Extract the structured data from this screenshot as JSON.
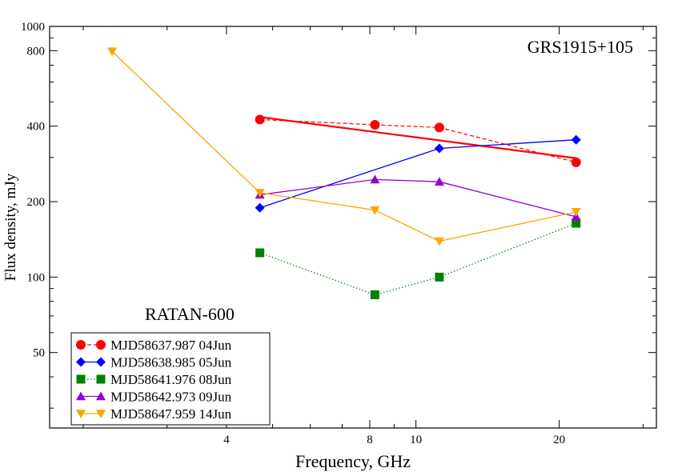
{
  "chart_data": {
    "type": "line",
    "title": "",
    "xlabel": "Frequency, GHz",
    "ylabel": "Flux density, mJy",
    "x_scale": "log",
    "y_scale": "log",
    "xlim": [
      1.7,
      32
    ],
    "ylim": [
      25,
      1000
    ],
    "x_ticks": [
      4,
      8,
      10,
      20
    ],
    "x_tick_labels": [
      "4",
      "8",
      "10",
      "20"
    ],
    "y_ticks": [
      50,
      100,
      200,
      400,
      800,
      1000
    ],
    "y_tick_labels": [
      "50",
      "100",
      "200",
      "400",
      "800",
      "1000"
    ],
    "grid": false,
    "legend_position": "bottom-left",
    "annotations": [
      {
        "text": "GRS1915+105",
        "position": "top-right"
      },
      {
        "text": "RATAN-600",
        "position": "left-middle"
      }
    ],
    "series": [
      {
        "name": "MJD58637.987 04Jun",
        "color": "#ff0000",
        "marker": "circle",
        "line_style": "dashed",
        "x": [
          4.7,
          8.2,
          11.2,
          21.7
        ],
        "y": [
          425,
          405,
          395,
          287
        ],
        "fit": {
          "x": [
            4.7,
            21.7
          ],
          "y": [
            435,
            298
          ],
          "color": "#ff0000",
          "line_style": "solid"
        }
      },
      {
        "name": "MJD58638.985 05Jun",
        "color": "#0000ff",
        "marker": "diamond",
        "line_style": "solid",
        "x": [
          4.7,
          11.2,
          21.7
        ],
        "y": [
          189,
          326,
          353
        ]
      },
      {
        "name": "MJD58641.976 08Jun",
        "color": "#008000",
        "marker": "square",
        "line_style": "dotted",
        "x": [
          4.7,
          8.2,
          11.2,
          21.7
        ],
        "y": [
          125,
          85,
          100,
          164
        ]
      },
      {
        "name": "MJD58642.973 09Jun",
        "color": "#9400d3",
        "marker": "triangle-up",
        "line_style": "solid",
        "x": [
          4.7,
          8.2,
          11.2,
          21.7
        ],
        "y": [
          213,
          245,
          240,
          174
        ]
      },
      {
        "name": "MJD58647.959 14Jun",
        "color": "#ffa500",
        "marker": "triangle-down",
        "line_style": "solid",
        "x": [
          2.3,
          4.7,
          8.2,
          11.2,
          21.7
        ],
        "y": [
          795,
          217,
          185,
          139,
          182
        ]
      }
    ]
  }
}
